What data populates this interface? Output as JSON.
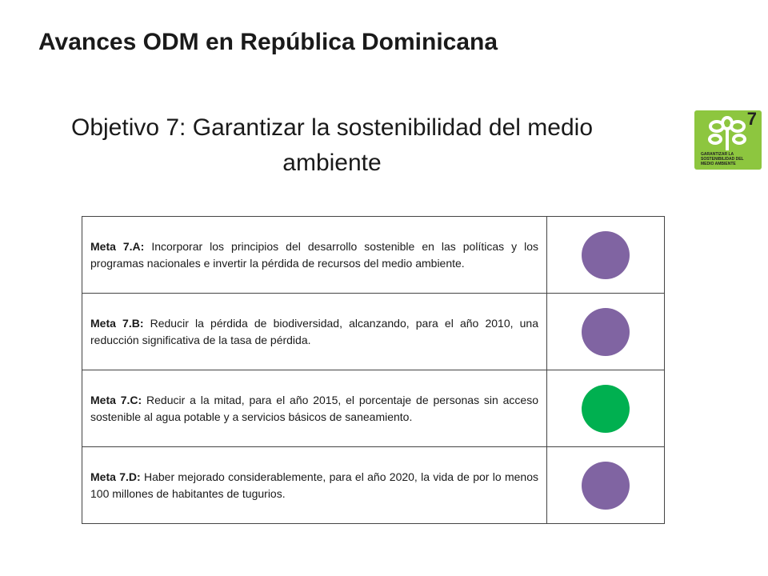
{
  "header": {
    "title": "Avances ODM en República Dominicana",
    "subtitle_line1": "Objetivo 7: Garantizar la sostenibilidad del medio",
    "subtitle_line2": "ambiente"
  },
  "logo": {
    "number": "7",
    "caption_line1": "GARANTIZAR LA",
    "caption_line2": "SOSTENIBILIDAD DEL",
    "caption_line3": "MEDIO AMBIENTE",
    "color": "#8dc63f"
  },
  "table": {
    "rows": [
      {
        "label": "Meta 7.A:",
        "text": "Incorporar los principios del desarrollo sostenible en las políticas y los programas nacionales e invertir la pérdida de recursos del medio ambiente.",
        "color": "#8064a2"
      },
      {
        "label": "Meta 7.B:",
        "text": "Reducir la pérdida de biodiversidad, alcanzando, para el año 2010, una reducción significativa de la tasa de pérdida.",
        "color": "#8064a2"
      },
      {
        "label": "Meta 7.C:",
        "text": "Reducir a la mitad, para el año 2015, el porcentaje de personas sin acceso sostenible al agua potable y a servicios básicos de saneamiento.",
        "color": "#00b050"
      },
      {
        "label": "Meta 7.D:",
        "text": "Haber mejorado considerablemente, para el año 2020, la vida de por lo menos 100 millones de habitantes de tugurios.",
        "color": "#8064a2"
      }
    ]
  }
}
